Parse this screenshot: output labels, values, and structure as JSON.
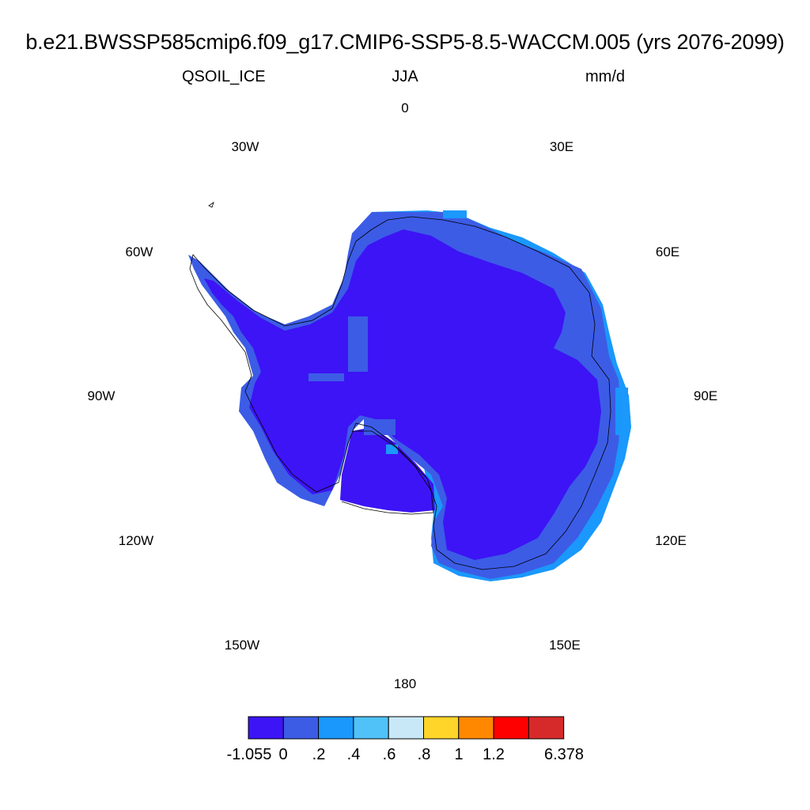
{
  "title": "b.e21.BWSSP585cmip6.f09_g17.CMIP6-SSP5-8.5-WACCM.005 (yrs 2076-2099)",
  "subtitle": {
    "left": "QSOIL_ICE",
    "center": "JJA",
    "right": "mm/d"
  },
  "longitude_labels": [
    "0",
    "30E",
    "60E",
    "90E",
    "120E",
    "150E",
    "180",
    "150W",
    "120W",
    "90W",
    "60W",
    "30W"
  ],
  "colorbar": {
    "colors": [
      "#3d14f5",
      "#3c5ce6",
      "#1a98fb",
      "#50c2f7",
      "#c8e8f8",
      "#ffd52a",
      "#ff8800",
      "#ff0000",
      "#d62a2a"
    ],
    "labels": [
      "-1.055",
      "0",
      ".2",
      ".4",
      ".6",
      ".8",
      "1",
      "1.2",
      "6.378"
    ]
  },
  "map": {
    "dominant_color": "#3d14f5",
    "coast_color": "#3c5ce6",
    "edge_color": "#1a98fb"
  }
}
